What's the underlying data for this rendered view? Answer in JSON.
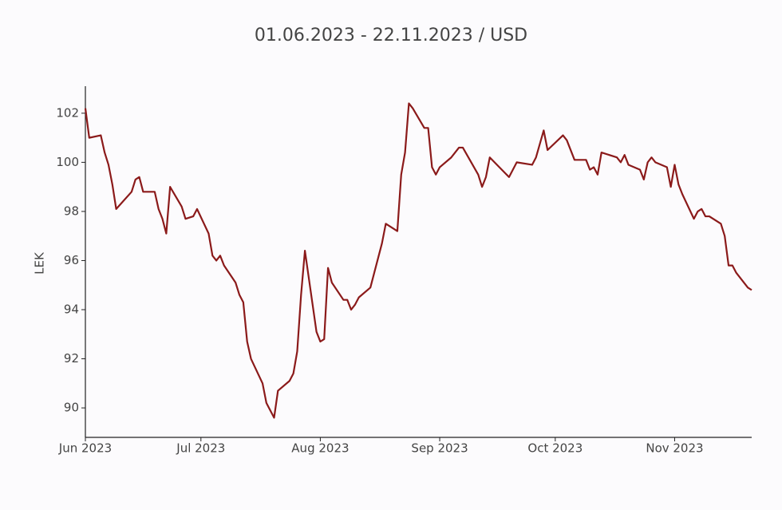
{
  "chart_data": {
    "type": "line",
    "title": "01.06.2023 - 22.11.2023 / USD",
    "y_label": "LEK",
    "x": [
      "2023-06-01",
      "2023-06-02",
      "2023-06-05",
      "2023-06-06",
      "2023-06-07",
      "2023-06-08",
      "2023-06-09",
      "2023-06-13",
      "2023-06-14",
      "2023-06-15",
      "2023-06-16",
      "2023-06-19",
      "2023-06-20",
      "2023-06-21",
      "2023-06-22",
      "2023-06-23",
      "2023-06-26",
      "2023-06-27",
      "2023-06-29",
      "2023-06-30",
      "2023-07-03",
      "2023-07-04",
      "2023-07-05",
      "2023-07-06",
      "2023-07-07",
      "2023-07-10",
      "2023-07-11",
      "2023-07-12",
      "2023-07-13",
      "2023-07-14",
      "2023-07-17",
      "2023-07-18",
      "2023-07-20",
      "2023-07-21",
      "2023-07-24",
      "2023-07-25",
      "2023-07-26",
      "2023-07-27",
      "2023-07-28",
      "2023-07-31",
      "2023-08-01",
      "2023-08-02",
      "2023-08-03",
      "2023-08-04",
      "2023-08-07",
      "2023-08-08",
      "2023-08-09",
      "2023-08-10",
      "2023-08-11",
      "2023-08-14",
      "2023-08-17",
      "2023-08-18",
      "2023-08-21",
      "2023-08-22",
      "2023-08-23",
      "2023-08-24",
      "2023-08-25",
      "2023-08-28",
      "2023-08-29",
      "2023-08-30",
      "2023-08-31",
      "2023-09-01",
      "2023-09-04",
      "2023-09-06",
      "2023-09-07",
      "2023-09-11",
      "2023-09-12",
      "2023-09-13",
      "2023-09-14",
      "2023-09-19",
      "2023-09-21",
      "2023-09-25",
      "2023-09-26",
      "2023-09-28",
      "2023-09-29",
      "2023-10-03",
      "2023-10-04",
      "2023-10-06",
      "2023-10-09",
      "2023-10-10",
      "2023-10-11",
      "2023-10-12",
      "2023-10-13",
      "2023-10-17",
      "2023-10-18",
      "2023-10-19",
      "2023-10-20",
      "2023-10-23",
      "2023-10-24",
      "2023-10-25",
      "2023-10-26",
      "2023-10-27",
      "2023-10-30",
      "2023-10-31",
      "2023-11-01",
      "2023-11-02",
      "2023-11-03",
      "2023-11-06",
      "2023-11-07",
      "2023-11-08",
      "2023-11-09",
      "2023-11-10",
      "2023-11-13",
      "2023-11-14",
      "2023-11-15",
      "2023-11-16",
      "2023-11-17",
      "2023-11-20",
      "2023-11-21"
    ],
    "series": [
      {
        "name": "USD",
        "color": "#8b1a1a",
        "values": [
          102.2,
          101.0,
          101.1,
          100.4,
          99.9,
          99.1,
          98.1,
          98.8,
          99.3,
          99.4,
          98.8,
          98.8,
          98.1,
          97.7,
          97.1,
          99.0,
          98.2,
          97.7,
          97.8,
          98.1,
          97.1,
          96.2,
          96.0,
          96.2,
          95.8,
          95.1,
          94.6,
          94.3,
          92.7,
          92.0,
          91.0,
          90.2,
          89.6,
          90.7,
          91.1,
          91.4,
          92.3,
          94.6,
          96.4,
          93.1,
          92.7,
          92.8,
          95.7,
          95.1,
          94.4,
          94.4,
          94.0,
          94.2,
          94.5,
          94.9,
          96.7,
          97.5,
          97.2,
          99.5,
          100.4,
          102.4,
          102.2,
          101.4,
          101.4,
          99.8,
          99.5,
          99.8,
          100.2,
          100.6,
          100.6,
          99.5,
          99.0,
          99.4,
          100.2,
          99.4,
          100.0,
          99.9,
          100.2,
          101.3,
          100.5,
          101.1,
          100.9,
          100.1,
          100.1,
          99.7,
          99.8,
          99.5,
          100.4,
          100.2,
          100.0,
          100.3,
          99.9,
          99.7,
          99.3,
          100.0,
          100.2,
          100.0,
          99.8,
          99.0,
          99.9,
          99.1,
          98.7,
          97.7,
          98.0,
          98.1,
          97.8,
          97.8,
          97.5,
          97.0,
          95.8,
          95.8,
          95.5,
          94.9,
          94.8
        ]
      }
    ],
    "xlim": [
      "2023-06-01",
      "2023-11-21"
    ],
    "xticks": [
      {
        "value": "2023-06-01",
        "label": "Jun 2023"
      },
      {
        "value": "2023-07-01",
        "label": "Jul 2023"
      },
      {
        "value": "2023-08-01",
        "label": "Aug 2023"
      },
      {
        "value": "2023-09-01",
        "label": "Sep 2023"
      },
      {
        "value": "2023-10-01",
        "label": "Oct 2023"
      },
      {
        "value": "2023-11-01",
        "label": "Nov 2023"
      }
    ],
    "ylim": [
      88.8,
      103.1
    ],
    "yticks": [
      90,
      92,
      94,
      96,
      98,
      100,
      102
    ],
    "grid": false
  }
}
